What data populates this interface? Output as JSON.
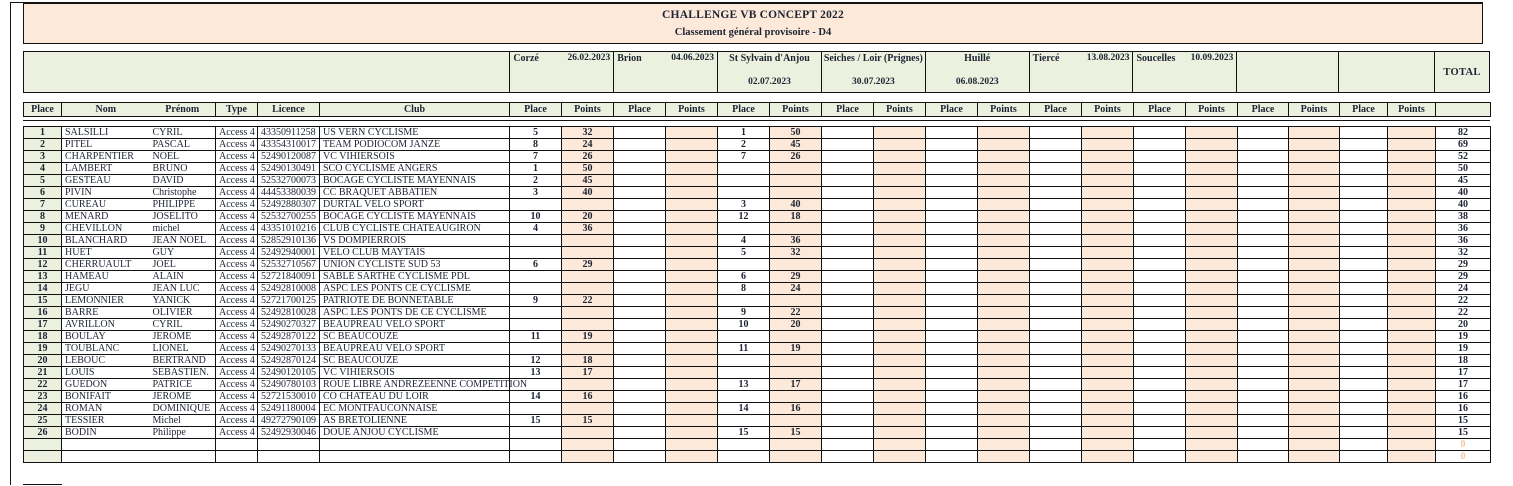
{
  "title": {
    "line1": "CHALLENGE VB CONCEPT 2022",
    "line2": "Classement général provisoire - D4"
  },
  "colors": {
    "band_peach": "#fde9d9",
    "band_green": "#ebf1de",
    "faint_zero": "#f2c7a1",
    "border": "#111111"
  },
  "events": [
    {
      "name": "Corzé",
      "date": "26.02.2023",
      "layout": "split"
    },
    {
      "name": "Brion",
      "date": "04.06.2023",
      "layout": "split"
    },
    {
      "name": "St Sylvain d'Anjou",
      "date": "02.07.2023",
      "layout": "stacked"
    },
    {
      "name": "Seiches / Loir (Prignes)",
      "date": "30.07.2023",
      "layout": "stacked"
    },
    {
      "name": "Huillé",
      "date": "06.08.2023",
      "layout": "stacked"
    },
    {
      "name": "Tiercé",
      "date": "13.08.2023",
      "layout": "split"
    },
    {
      "name": "Soucelles",
      "date": "10.09.2023",
      "layout": "split"
    },
    {
      "name": "",
      "date": "",
      "layout": "empty"
    },
    {
      "name": "",
      "date": "",
      "layout": "empty"
    }
  ],
  "total_label": "TOTAL",
  "column_headers": {
    "place": "Place",
    "nom": "Nom",
    "prenom": "Prénom",
    "type": "Type",
    "licence": "Licence",
    "club": "Club",
    "event_place": "Place",
    "event_points": "Points"
  },
  "riders": [
    {
      "place": "1",
      "nom": "SALSILLI",
      "prenom": "CYRIL",
      "type": "Access 4",
      "licence": "43350911258",
      "club": "US VERN CYCLISME",
      "results": [
        "5",
        "32",
        "",
        "",
        "1",
        "50",
        "",
        "",
        "",
        "",
        "",
        "",
        "",
        "",
        "",
        "",
        "",
        ""
      ],
      "total": "82"
    },
    {
      "place": "2",
      "nom": "PITEL",
      "prenom": "PASCAL",
      "type": "Access 4",
      "licence": "43354310017",
      "club": "TEAM PODIOCOM JANZE",
      "results": [
        "8",
        "24",
        "",
        "",
        "2",
        "45",
        "",
        "",
        "",
        "",
        "",
        "",
        "",
        "",
        "",
        "",
        "",
        ""
      ],
      "total": "69"
    },
    {
      "place": "3",
      "nom": "CHARPENTIER",
      "prenom": "NOEL",
      "type": "Access 4",
      "licence": "52490120087",
      "club": "VC VIHIERSOIS",
      "results": [
        "7",
        "26",
        "",
        "",
        "7",
        "26",
        "",
        "",
        "",
        "",
        "",
        "",
        "",
        "",
        "",
        "",
        "",
        ""
      ],
      "total": "52"
    },
    {
      "place": "4",
      "nom": "LAMBERT",
      "prenom": "BRUNO",
      "type": "Access 4",
      "licence": "52490130491",
      "club": "SCO CYCLISME ANGERS",
      "results": [
        "1",
        "50",
        "",
        "",
        "",
        "",
        "",
        "",
        "",
        "",
        "",
        "",
        "",
        "",
        "",
        "",
        "",
        ""
      ],
      "total": "50"
    },
    {
      "place": "5",
      "nom": "GESTEAU",
      "prenom": "DAVID",
      "type": "Access 4",
      "licence": "52532700073",
      "club": "BOCAGE CYCLISTE MAYENNAIS",
      "results": [
        "2",
        "45",
        "",
        "",
        "",
        "",
        "",
        "",
        "",
        "",
        "",
        "",
        "",
        "",
        "",
        "",
        "",
        ""
      ],
      "total": "45"
    },
    {
      "place": "6",
      "nom": "PIVIN",
      "prenom": "Christophe",
      "type": "Access 4",
      "licence": "44453380039",
      "club": "CC BRAQUET ABBATIEN",
      "results": [
        "3",
        "40",
        "",
        "",
        "",
        "",
        "",
        "",
        "",
        "",
        "",
        "",
        "",
        "",
        "",
        "",
        "",
        ""
      ],
      "total": "40"
    },
    {
      "place": "7",
      "nom": "CUREAU",
      "prenom": "PHILIPPE",
      "type": "Access 4",
      "licence": "52492880307",
      "club": "DURTAL VELO SPORT",
      "results": [
        "",
        "",
        "",
        "",
        "3",
        "40",
        "",
        "",
        "",
        "",
        "",
        "",
        "",
        "",
        "",
        "",
        "",
        ""
      ],
      "total": "40"
    },
    {
      "place": "8",
      "nom": "MENARD",
      "prenom": "JOSELITO",
      "type": "Access 4",
      "licence": "52532700255",
      "club": "BOCAGE CYCLISTE MAYENNAIS",
      "results": [
        "10",
        "20",
        "",
        "",
        "12",
        "18",
        "",
        "",
        "",
        "",
        "",
        "",
        "",
        "",
        "",
        "",
        "",
        ""
      ],
      "total": "38"
    },
    {
      "place": "9",
      "nom": "CHEVILLON",
      "prenom": "michel",
      "type": "Access 4",
      "licence": "43351010216",
      "club": "CLUB CYCLISTE CHATEAUGIRON",
      "results": [
        "4",
        "36",
        "",
        "",
        "",
        "",
        "",
        "",
        "",
        "",
        "",
        "",
        "",
        "",
        "",
        "",
        "",
        ""
      ],
      "total": "36"
    },
    {
      "place": "10",
      "nom": "BLANCHARD",
      "prenom": "JEAN NOEL",
      "type": "Access 4",
      "licence": "52852910136",
      "club": "VS DOMPIERROIS",
      "results": [
        "",
        "",
        "",
        "",
        "4",
        "36",
        "",
        "",
        "",
        "",
        "",
        "",
        "",
        "",
        "",
        "",
        "",
        ""
      ],
      "total": "36"
    },
    {
      "place": "11",
      "nom": "HUET",
      "prenom": "GUY",
      "type": "Access 4",
      "licence": "52492940001",
      "club": "VELO CLUB MAYTAIS",
      "results": [
        "",
        "",
        "",
        "",
        "5",
        "32",
        "",
        "",
        "",
        "",
        "",
        "",
        "",
        "",
        "",
        "",
        "",
        ""
      ],
      "total": "32"
    },
    {
      "place": "12",
      "nom": "CHERRUAULT",
      "prenom": "JOEL",
      "type": "Access 4",
      "licence": "52532710567",
      "club": "UNION CYCLISTE SUD 53",
      "results": [
        "6",
        "29",
        "",
        "",
        "",
        "",
        "",
        "",
        "",
        "",
        "",
        "",
        "",
        "",
        "",
        "",
        "",
        ""
      ],
      "total": "29"
    },
    {
      "place": "13",
      "nom": "HAMEAU",
      "prenom": "ALAIN",
      "type": "Access 4",
      "licence": "52721840091",
      "club": "SABLE SARTHE CYCLISME PDL",
      "results": [
        "",
        "",
        "",
        "",
        "6",
        "29",
        "",
        "",
        "",
        "",
        "",
        "",
        "",
        "",
        "",
        "",
        "",
        ""
      ],
      "total": "29"
    },
    {
      "place": "14",
      "nom": "JEGU",
      "prenom": "JEAN LUC",
      "type": "Access 4",
      "licence": "52492810008",
      "club": "ASPC LES PONTS CE CYCLISME",
      "results": [
        "",
        "",
        "",
        "",
        "8",
        "24",
        "",
        "",
        "",
        "",
        "",
        "",
        "",
        "",
        "",
        "",
        "",
        ""
      ],
      "total": "24"
    },
    {
      "place": "15",
      "nom": "LEMONNIER",
      "prenom": "YANICK",
      "type": "Access 4",
      "licence": "52721700125",
      "club": "PATRIOTE DE BONNETABLE",
      "results": [
        "9",
        "22",
        "",
        "",
        "",
        "",
        "",
        "",
        "",
        "",
        "",
        "",
        "",
        "",
        "",
        "",
        "",
        ""
      ],
      "total": "22"
    },
    {
      "place": "16",
      "nom": "BARRE",
      "prenom": "OLIVIER",
      "type": "Access 4",
      "licence": "52492810028",
      "club": "ASPC LES PONTS DE CE CYCLISME",
      "results": [
        "",
        "",
        "",
        "",
        "9",
        "22",
        "",
        "",
        "",
        "",
        "",
        "",
        "",
        "",
        "",
        "",
        "",
        ""
      ],
      "total": "22"
    },
    {
      "place": "17",
      "nom": "AVRILLON",
      "prenom": "CYRIL",
      "type": "Access 4",
      "licence": "52490270327",
      "club": "BEAUPREAU VELO SPORT",
      "results": [
        "",
        "",
        "",
        "",
        "10",
        "20",
        "",
        "",
        "",
        "",
        "",
        "",
        "",
        "",
        "",
        "",
        "",
        ""
      ],
      "total": "20"
    },
    {
      "place": "18",
      "nom": "BOULAY",
      "prenom": "JEROME",
      "type": "Access 4",
      "licence": "52492870122",
      "club": "SC BEAUCOUZE",
      "results": [
        "11",
        "19",
        "",
        "",
        "",
        "",
        "",
        "",
        "",
        "",
        "",
        "",
        "",
        "",
        "",
        "",
        "",
        ""
      ],
      "total": "19"
    },
    {
      "place": "19",
      "nom": "TOUBLANC",
      "prenom": "LIONEL",
      "type": "Access 4",
      "licence": "52490270133",
      "club": "BEAUPREAU VELO SPORT",
      "results": [
        "",
        "",
        "",
        "",
        "11",
        "19",
        "",
        "",
        "",
        "",
        "",
        "",
        "",
        "",
        "",
        "",
        "",
        ""
      ],
      "total": "19"
    },
    {
      "place": "20",
      "nom": "LEBOUC",
      "prenom": "BERTRAND",
      "type": "Access 4",
      "licence": "52492870124",
      "club": "SC BEAUCOUZE",
      "results": [
        "12",
        "18",
        "",
        "",
        "",
        "",
        "",
        "",
        "",
        "",
        "",
        "",
        "",
        "",
        "",
        "",
        "",
        ""
      ],
      "total": "18"
    },
    {
      "place": "21",
      "nom": "LOUIS",
      "prenom": "SEBASTIEN.",
      "type": "Access 4",
      "licence": "52490120105",
      "club": "VC VIHIERSOIS",
      "results": [
        "13",
        "17",
        "",
        "",
        "",
        "",
        "",
        "",
        "",
        "",
        "",
        "",
        "",
        "",
        "",
        "",
        "",
        ""
      ],
      "total": "17"
    },
    {
      "place": "22",
      "nom": "GUEDON",
      "prenom": "PATRICE",
      "type": "Access 4",
      "licence": "52490780103",
      "club": "ROUE LIBRE ANDREZEENNE COMPETITION",
      "results": [
        "",
        "",
        "",
        "",
        "13",
        "17",
        "",
        "",
        "",
        "",
        "",
        "",
        "",
        "",
        "",
        "",
        "",
        ""
      ],
      "total": "17"
    },
    {
      "place": "23",
      "nom": "BONIFAIT",
      "prenom": "JEROME",
      "type": "Access 4",
      "licence": "52721530010",
      "club": "CO CHATEAU DU LOIR",
      "results": [
        "14",
        "16",
        "",
        "",
        "",
        "",
        "",
        "",
        "",
        "",
        "",
        "",
        "",
        "",
        "",
        "",
        "",
        ""
      ],
      "total": "16"
    },
    {
      "place": "24",
      "nom": "ROMAN",
      "prenom": "DOMINIQUE",
      "type": "Access 4",
      "licence": "52491180004",
      "club": "EC MONTFAUCONNAISE",
      "results": [
        "",
        "",
        "",
        "",
        "14",
        "16",
        "",
        "",
        "",
        "",
        "",
        "",
        "",
        "",
        "",
        "",
        "",
        ""
      ],
      "total": "16"
    },
    {
      "place": "25",
      "nom": "TESSIER",
      "prenom": "Michel",
      "type": "Access 4",
      "licence": "49272790109",
      "club": "AS BRETOLIENNE",
      "results": [
        "15",
        "15",
        "",
        "",
        "",
        "",
        "",
        "",
        "",
        "",
        "",
        "",
        "",
        "",
        "",
        "",
        "",
        ""
      ],
      "total": "15"
    },
    {
      "place": "26",
      "nom": "BODIN",
      "prenom": "Philippe",
      "type": "Access 4",
      "licence": "52492930046",
      "club": "DOUE ANJOU CYCLISME",
      "results": [
        "",
        "",
        "",
        "",
        "15",
        "15",
        "",
        "",
        "",
        "",
        "",
        "",
        "",
        "",
        "",
        "",
        "",
        ""
      ],
      "total": "15"
    }
  ],
  "trailing_rows": [
    {
      "total": "0"
    },
    {
      "total": "0"
    }
  ]
}
